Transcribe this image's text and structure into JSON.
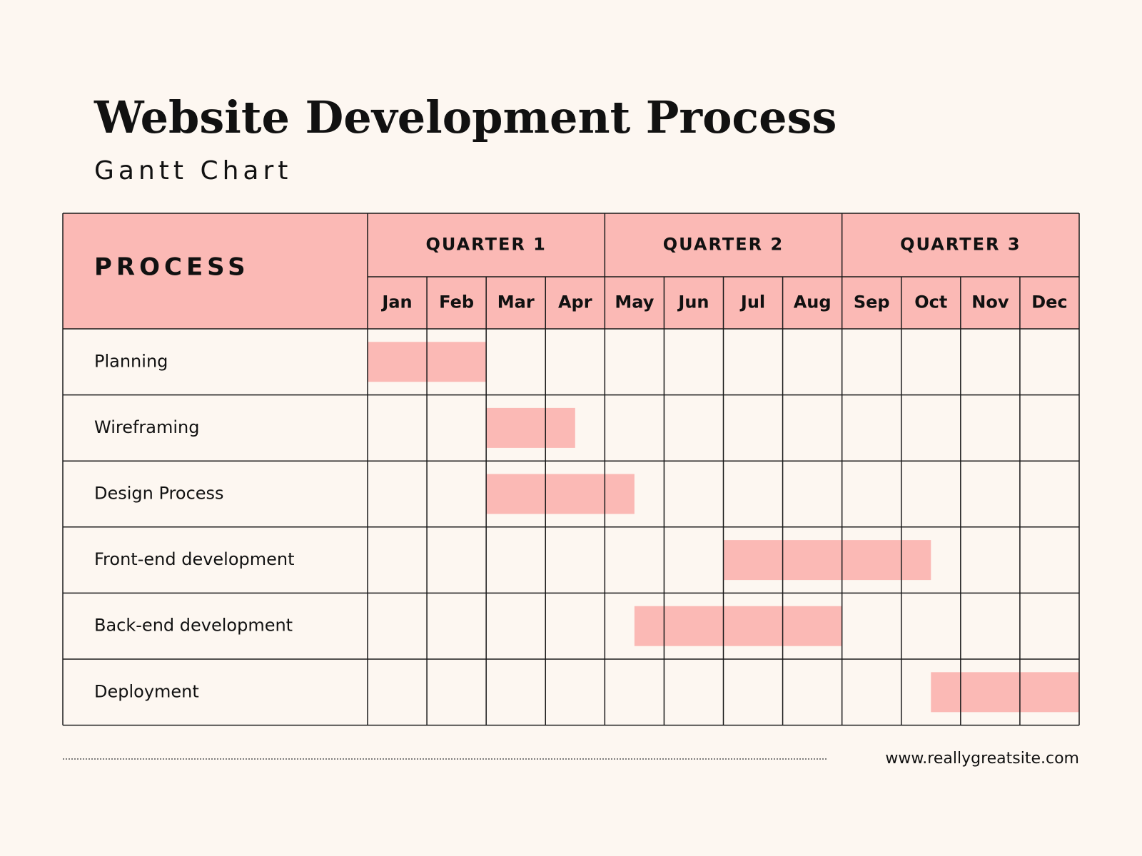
{
  "chart_data": {
    "type": "gantt",
    "title": "Website Development Process",
    "subtitle": "Gantt Chart",
    "header": "PROCESS",
    "quarters": [
      "QUARTER 1",
      "QUARTER 2",
      "QUARTER 3"
    ],
    "months": [
      "Jan",
      "Feb",
      "Mar",
      "Apr",
      "May",
      "Jun",
      "Jul",
      "Aug",
      "Sep",
      "Oct",
      "Nov",
      "Dec"
    ],
    "xlim": [
      0,
      12
    ],
    "color": "#fbb9b5",
    "tasks": [
      {
        "name": "Planning",
        "start": 0,
        "end": 2
      },
      {
        "name": "Wireframing",
        "start": 2,
        "end": 3.5
      },
      {
        "name": "Design Process",
        "start": 2,
        "end": 4.5
      },
      {
        "name": "Front-end development",
        "start": 6,
        "end": 9.5
      },
      {
        "name": "Back-end development",
        "start": 4.5,
        "end": 8
      },
      {
        "name": "Deployment",
        "start": 9.5,
        "end": 12
      }
    ],
    "footer": "www.reallygreatsite.com"
  }
}
